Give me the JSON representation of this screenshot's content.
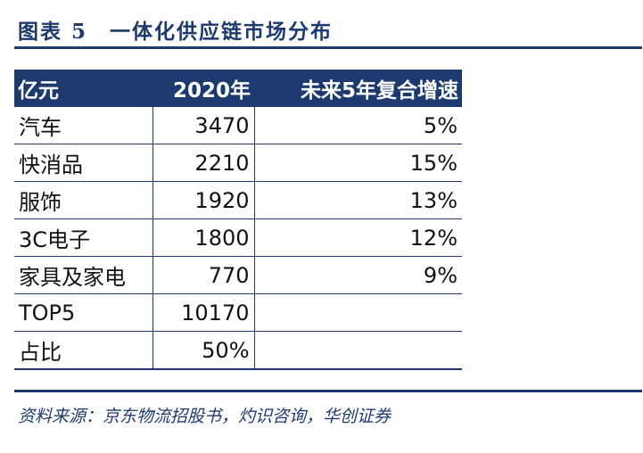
{
  "title": "图表 5　一体化供应链市场分布",
  "table": {
    "headers": [
      "亿元",
      "2020年",
      "未来5年复合增速"
    ],
    "rows": [
      {
        "name": "汽车",
        "value": "3470",
        "growth": "5%"
      },
      {
        "name": "快消品",
        "value": "2210",
        "growth": "15%"
      },
      {
        "name": "服饰",
        "value": "1920",
        "growth": "13%"
      },
      {
        "name": "3C电子",
        "value": "1800",
        "growth": "12%"
      },
      {
        "name": "家具及家电",
        "value": "770",
        "growth": "9%"
      },
      {
        "name": "TOP5",
        "value": "10170",
        "growth": ""
      },
      {
        "name": "占比",
        "value": "50%",
        "growth": ""
      }
    ]
  },
  "source": "资料来源：京东物流招股书，灼识咨询，华创证券",
  "colors": {
    "accent": "#1c3a6e",
    "header_text": "#ffffff",
    "body_text": "#111111"
  }
}
